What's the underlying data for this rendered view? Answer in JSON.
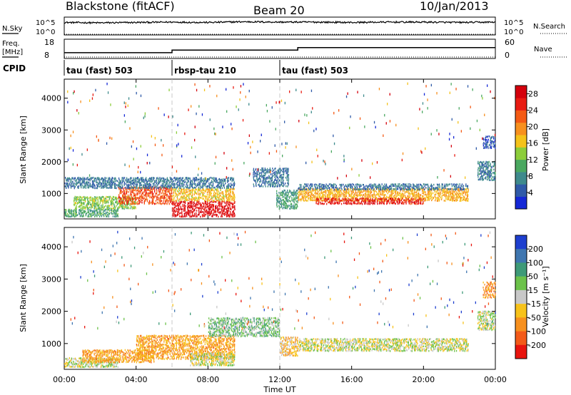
{
  "header": {
    "station": "Blackstone (fitACF)",
    "beam": "Beam 20",
    "date": "10/Jan/2013"
  },
  "panel_labels": {
    "nsky": "N.Sky",
    "nsearch": "N.Search",
    "freq_line1": "Freq.",
    "freq_line2": "[MHz]",
    "nave": "Nave",
    "cpid": "CPID"
  },
  "noise_ticks": {
    "top": "10^5",
    "bottom": "10^0"
  },
  "freq_ticks": {
    "left": [
      "18",
      "8"
    ],
    "right": [
      "60",
      "0"
    ]
  },
  "cpid_segments": [
    {
      "label": "tau (fast) 503",
      "start_hour": 0,
      "end_hour": 6
    },
    {
      "label": "rbsp-tau 210",
      "start_hour": 6,
      "end_hour": 12
    },
    {
      "label": "tau (fast) 503",
      "start_hour": 12,
      "end_hour": 24
    }
  ],
  "x_axis": {
    "title": "Time UT",
    "ticks": [
      "00:00",
      "04:00",
      "08:00",
      "12:00",
      "16:00",
      "20:00",
      "00:00"
    ]
  },
  "y_axis": {
    "title": "Slant Range [km]",
    "ticks": [
      "1000",
      "2000",
      "3000",
      "4000"
    ]
  },
  "power_scale": {
    "title": "Power [dB]",
    "labels": [
      "4",
      "8",
      "12",
      "16",
      "20",
      "24",
      "28"
    ],
    "colors": [
      "#1528d6",
      "#2f5aa8",
      "#3e8a8c",
      "#4aa860",
      "#8ccd3a",
      "#f4c21a",
      "#f7901e",
      "#f45a14",
      "#e81b12",
      "#d4000c"
    ]
  },
  "velocity_scale": {
    "title": "Velocity [m s⁻¹]",
    "labels": [
      "200",
      "100",
      "50",
      "15",
      "-15",
      "-50",
      "-100",
      "-200"
    ],
    "colors": [
      "#1e3fcf",
      "#3f76b0",
      "#3e9a78",
      "#6cc24a",
      "#c8c8c8",
      "#f7c21a",
      "#f7901e",
      "#f35a18",
      "#e8140e"
    ]
  },
  "chart_data": [
    {
      "type": "line",
      "title": "N.Sky / N.Search",
      "x_unit": "hours UT",
      "x_range": [
        0,
        24
      ],
      "series": [
        {
          "name": "N.Sky",
          "x": [
            0,
            2,
            4,
            6,
            8,
            10,
            12,
            14,
            16,
            18,
            20,
            22,
            24
          ],
          "y": [
            3.5,
            3.4,
            3.5,
            3.6,
            3.5,
            3.7,
            3.6,
            3.6,
            3.5,
            3.6,
            3.6,
            3.5,
            3.6
          ]
        },
        {
          "name": "N.Search",
          "x": [
            0,
            24
          ],
          "y": [
            0,
            0
          ]
        }
      ]
    },
    {
      "type": "line",
      "title": "Freq / Nave",
      "x_unit": "hours UT",
      "x_range": [
        0,
        24
      ],
      "series": [
        {
          "name": "Freq.",
          "x": [
            0,
            5.5,
            6,
            11.5,
            12,
            12.8,
            13,
            24
          ],
          "y": [
            9.5,
            9.5,
            11.5,
            11.5,
            11.5,
            11.5,
            13.5,
            13.5
          ]
        },
        {
          "name": "Nave",
          "x": [
            0,
            24
          ],
          "y": [
            0,
            0
          ]
        }
      ]
    },
    {
      "type": "heatmap",
      "title": "Power [dB]",
      "xlabel": "Time UT",
      "ylabel": "Slant Range [km]",
      "xlim": [
        0,
        24
      ],
      "ylim": [
        200,
        4600
      ],
      "value_range": [
        0,
        30
      ],
      "regions": [
        {
          "t0": 0.0,
          "t1": 3.0,
          "r0": 250,
          "r1": 500,
          "v": 10
        },
        {
          "t0": 0.5,
          "t1": 4.0,
          "r0": 500,
          "r1": 900,
          "v": 13
        },
        {
          "t0": 3.0,
          "t1": 6.0,
          "r0": 650,
          "r1": 1200,
          "v": 23
        },
        {
          "t0": 6.0,
          "t1": 9.5,
          "r0": 250,
          "r1": 750,
          "v": 27
        },
        {
          "t0": 6.0,
          "t1": 9.5,
          "r0": 750,
          "r1": 1150,
          "v": 17
        },
        {
          "t0": 0.0,
          "t1": 9.5,
          "r0": 1150,
          "r1": 1500,
          "v": 6
        },
        {
          "t0": 10.5,
          "t1": 12.5,
          "r0": 1200,
          "r1": 1800,
          "v": 6
        },
        {
          "t0": 11.8,
          "t1": 13.0,
          "r0": 500,
          "r1": 1100,
          "v": 9
        },
        {
          "t0": 13.0,
          "t1": 22.5,
          "r0": 750,
          "r1": 1150,
          "v": 18
        },
        {
          "t0": 14.0,
          "t1": 20.0,
          "r0": 650,
          "r1": 850,
          "v": 26
        },
        {
          "t0": 13.0,
          "t1": 22.5,
          "r0": 1100,
          "r1": 1300,
          "v": 6
        },
        {
          "t0": 23.0,
          "t1": 24.0,
          "r0": 1400,
          "r1": 2000,
          "v": 7
        },
        {
          "t0": 23.3,
          "t1": 24.0,
          "r0": 2400,
          "r1": 2800,
          "v": 4
        }
      ]
    },
    {
      "type": "heatmap",
      "title": "Velocity [m s⁻¹]",
      "xlabel": "Time UT",
      "ylabel": "Slant Range [km]",
      "xlim": [
        0,
        24
      ],
      "ylim": [
        200,
        4600
      ],
      "value_range": [
        -250,
        250
      ],
      "regions": [
        {
          "t0": 0.0,
          "t1": 3.0,
          "r0": 250,
          "r1": 550,
          "v": 0
        },
        {
          "t0": 1.0,
          "t1": 5.0,
          "r0": 400,
          "r1": 800,
          "v": -60
        },
        {
          "t0": 4.0,
          "t1": 9.5,
          "r0": 500,
          "r1": 1250,
          "v": -60
        },
        {
          "t0": 7.0,
          "t1": 9.5,
          "r0": 300,
          "r1": 700,
          "v": 0
        },
        {
          "t0": 8.0,
          "t1": 12.0,
          "r0": 1200,
          "r1": 1800,
          "v": 30
        },
        {
          "t0": 12.0,
          "t1": 13.0,
          "r0": 600,
          "r1": 1200,
          "v": -30
        },
        {
          "t0": 13.0,
          "t1": 22.5,
          "r0": 750,
          "r1": 1150,
          "v": 0
        },
        {
          "t0": 23.0,
          "t1": 24.0,
          "r0": 1400,
          "r1": 2000,
          "v": 5
        },
        {
          "t0": 23.3,
          "t1": 24.0,
          "r0": 2400,
          "r1": 2900,
          "v": -80
        }
      ]
    }
  ]
}
